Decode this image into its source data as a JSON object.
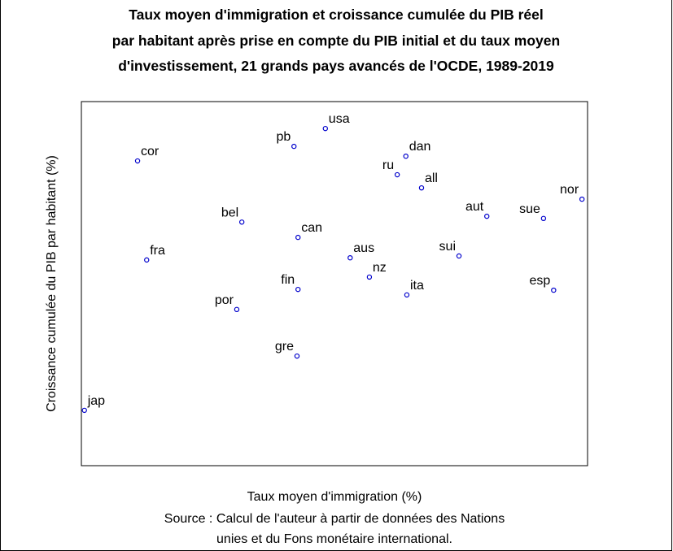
{
  "chart_data": {
    "type": "scatter",
    "title": [
      "Taux moyen d'immigration et croissance cumulée du PIB réel",
      "par habitant après prise en compte du PIB initial et du taux moyen",
      "d'investissement, 21 grands pays avancés de l'OCDE, 1989-2019"
    ],
    "xlabel": "Taux moyen d'immigration (%)",
    "ylabel": "Croissance cumulée du PIB par habitant (%)",
    "source": [
      "Source : Calcul de l'auteur à partir de données des Nations",
      "unies et du Fons monétaire international."
    ],
    "xlim": [
      0,
      100
    ],
    "ylim": [
      0,
      100
    ],
    "color": "#0000cc",
    "labels": [
      "cor",
      "fra",
      "jap",
      "bel",
      "por",
      "pb",
      "usa",
      "can",
      "fin",
      "gre",
      "aus",
      "nz",
      "ru",
      "dan",
      "all",
      "ita",
      "sui",
      "aut",
      "sue",
      "nor",
      "esp"
    ],
    "x": [
      11.1,
      12.9,
      0.6,
      31.7,
      30.7,
      42.0,
      48.2,
      42.8,
      42.8,
      42.6,
      53.1,
      56.9,
      62.4,
      64.1,
      67.2,
      64.3,
      74.6,
      80.1,
      91.3,
      98.9,
      93.3
    ],
    "y": [
      83.7,
      56.5,
      15.2,
      66.9,
      42.9,
      87.7,
      92.6,
      62.7,
      48.4,
      30.1,
      57.1,
      51.8,
      79.9,
      85.0,
      76.3,
      46.9,
      57.6,
      68.5,
      67.9,
      73.2,
      48.2
    ]
  }
}
